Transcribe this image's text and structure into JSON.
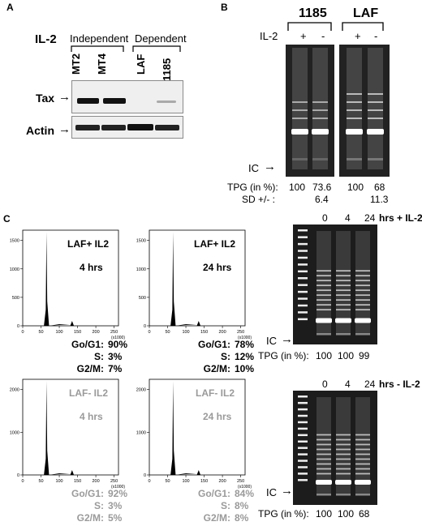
{
  "panelA": {
    "letter": "A",
    "il2_label": "IL-2",
    "group_independent": "Independent",
    "group_dependent": "Dependent",
    "lanes": [
      "MT2",
      "MT4",
      "LAF",
      "1185"
    ],
    "row_tax": "Tax",
    "row_actin": "Actin",
    "arrow": "→"
  },
  "panelB": {
    "letter": "B",
    "group1": "1185",
    "group2": "LAF",
    "il2_label": "IL-2",
    "signs": [
      "+",
      "-",
      "+",
      "-"
    ],
    "ic_label": "IC",
    "tpg_label": "TPG (in %):",
    "tpg_values": [
      "100",
      "73.6",
      "100",
      "68"
    ],
    "sd_label": "SD +/- :",
    "sd_values": [
      "6.4",
      "11.3"
    ]
  },
  "panelC": {
    "letter": "C",
    "histograms": [
      {
        "title": "LAF+ IL2",
        "time": "4 hrs",
        "y_ticks": [
          "0",
          "500",
          "1000",
          "1500"
        ],
        "stats": [
          [
            "Go/G1:",
            "90%"
          ],
          [
            "S:",
            "3%"
          ],
          [
            "G2/M:",
            "7%"
          ]
        ],
        "gray": false
      },
      {
        "title": "LAF+ IL2",
        "time": "24 hrs",
        "y_ticks": [
          "0",
          "500",
          "1000",
          "1500"
        ],
        "stats": [
          [
            "Go/G1:",
            "78%"
          ],
          [
            "S:",
            "12%"
          ],
          [
            "G2/M:",
            "10%"
          ]
        ],
        "gray": false
      },
      {
        "title": "LAF- IL2",
        "time": "4 hrs",
        "y_ticks": [
          "0",
          "1000",
          "2000"
        ],
        "stats": [
          [
            "Go/G1:",
            "92%"
          ],
          [
            "S:",
            "3%"
          ],
          [
            "G2/M:",
            "5%"
          ]
        ],
        "gray": true
      },
      {
        "title": "LAF- IL2",
        "time": "24 hrs",
        "y_ticks": [
          "0",
          "1000",
          "2000"
        ],
        "stats": [
          [
            "Go/G1:",
            "84%"
          ],
          [
            "S:",
            "8%"
          ],
          [
            "G2/M:",
            "8%"
          ]
        ],
        "gray": true
      }
    ],
    "x_ticks": [
      "0",
      "50",
      "100",
      "150",
      "200",
      "250"
    ],
    "x_unit": "(x1000)",
    "gel_top": {
      "times": [
        "0",
        "4",
        "24"
      ],
      "suffix": "hrs + IL-2",
      "ic_label": "IC",
      "tpg_label": "TPG (in %):",
      "tpg_values": [
        "100",
        "100",
        "99"
      ]
    },
    "gel_bottom": {
      "times": [
        "0",
        "4",
        "24"
      ],
      "suffix": "hrs - IL-2",
      "ic_label": "IC",
      "tpg_label": "TPG (in %):",
      "tpg_values": [
        "100",
        "100",
        "68"
      ]
    }
  },
  "colors": {
    "gel": "#222222",
    "band": "#ffffff",
    "gray_text": "#9a9a9a"
  }
}
